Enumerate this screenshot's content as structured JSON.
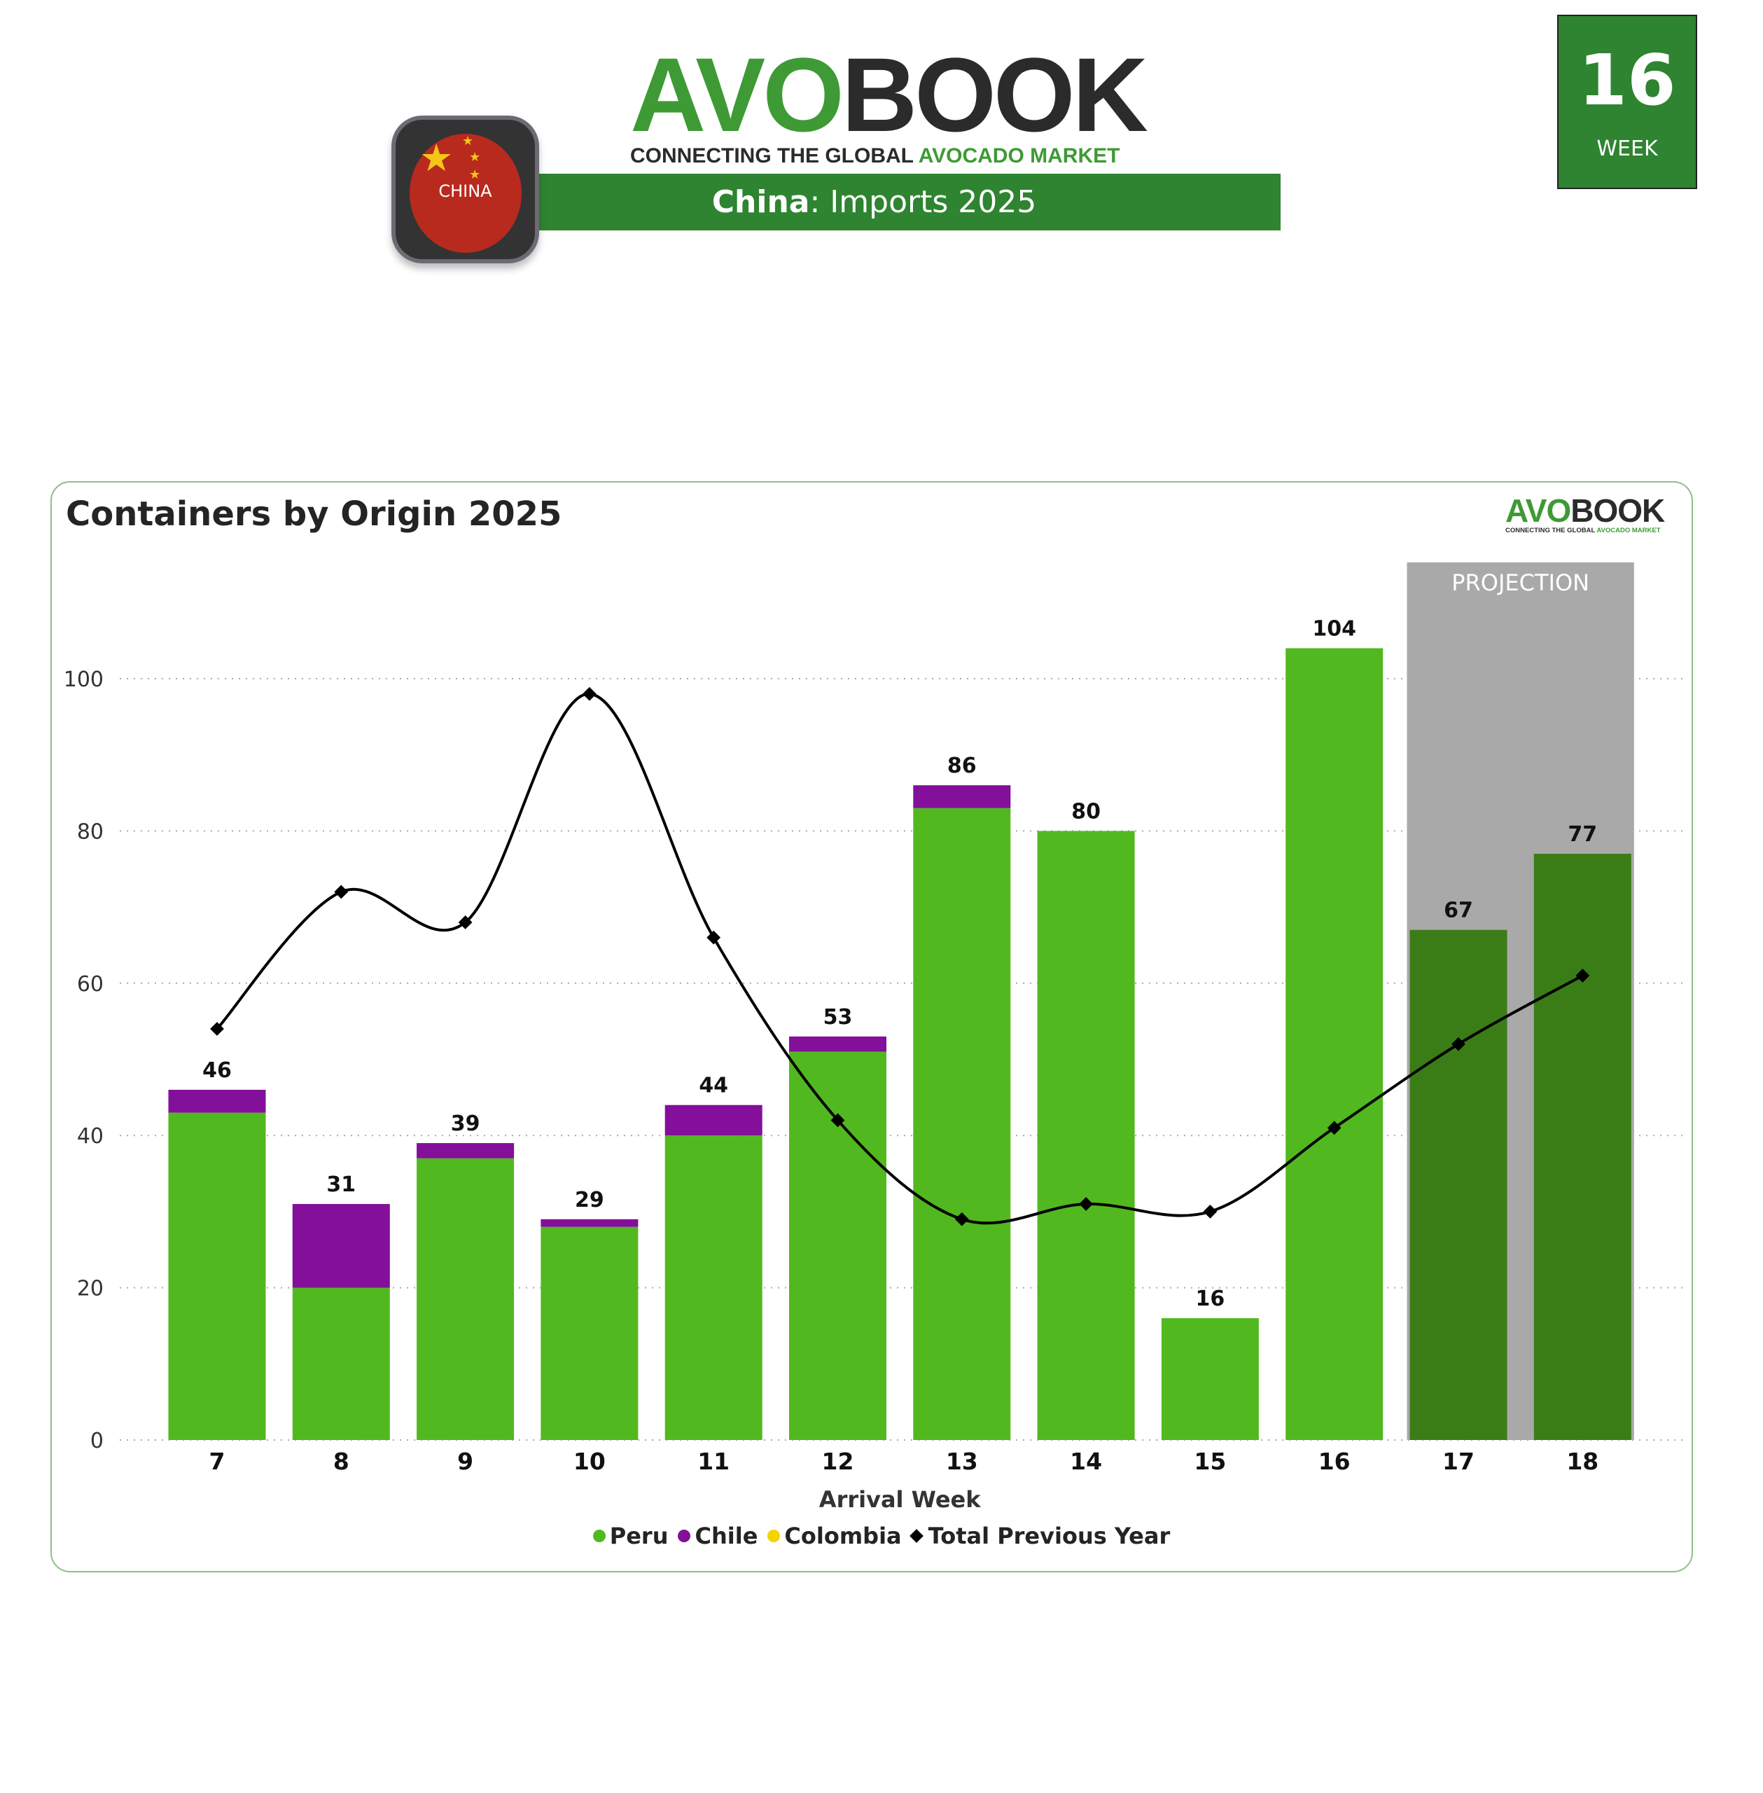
{
  "header": {
    "logo_avo": "AVO",
    "logo_book": "BOOK",
    "tagline_dark": "CONNECTING THE GLOBAL",
    "tagline_green": "AVOCADO MARKET",
    "banner_country": "China",
    "banner_rest": ": Imports 2025",
    "flag_label": "CHINA",
    "week_number": "16",
    "week_label": "WEEK"
  },
  "colors": {
    "peru": "#52b81f",
    "chile": "#830f9a",
    "colombia": "#f2d400",
    "prev": "#000000",
    "projection_bg": "#a9a9a9",
    "projection_bar": "#3a7d16",
    "brand": "#2e8430"
  },
  "chart_data": {
    "type": "bar",
    "title": "Containers by Origin 2025",
    "xlabel": "Arrival Week",
    "ylabel": "",
    "categories": [
      "7",
      "8",
      "9",
      "10",
      "11",
      "12",
      "13",
      "14",
      "15",
      "16",
      "17",
      "18"
    ],
    "series": [
      {
        "name": "Peru",
        "values": [
          43,
          20,
          37,
          28,
          40,
          51,
          83,
          80,
          16,
          104,
          67,
          77
        ]
      },
      {
        "name": "Chile",
        "values": [
          3,
          11,
          2,
          1,
          4,
          2,
          3,
          0,
          0,
          0,
          0,
          0
        ]
      },
      {
        "name": "Colombia",
        "values": [
          0,
          0,
          0,
          0,
          0,
          0,
          0,
          0,
          0,
          0,
          0,
          0
        ]
      },
      {
        "name": "Total Previous Year",
        "type": "line",
        "values": [
          54,
          72,
          68,
          98,
          66,
          42,
          29,
          31,
          30,
          41,
          52,
          61
        ]
      }
    ],
    "totals": [
      46,
      31,
      39,
      29,
      44,
      53,
      86,
      80,
      16,
      104,
      67,
      77
    ],
    "projection_categories": [
      "17",
      "18"
    ],
    "projection_label": "PROJECTION",
    "yticks": [
      0,
      20,
      40,
      60,
      80,
      100
    ],
    "ylim": [
      0,
      112
    ],
    "grid": true,
    "legend": "bottom"
  }
}
